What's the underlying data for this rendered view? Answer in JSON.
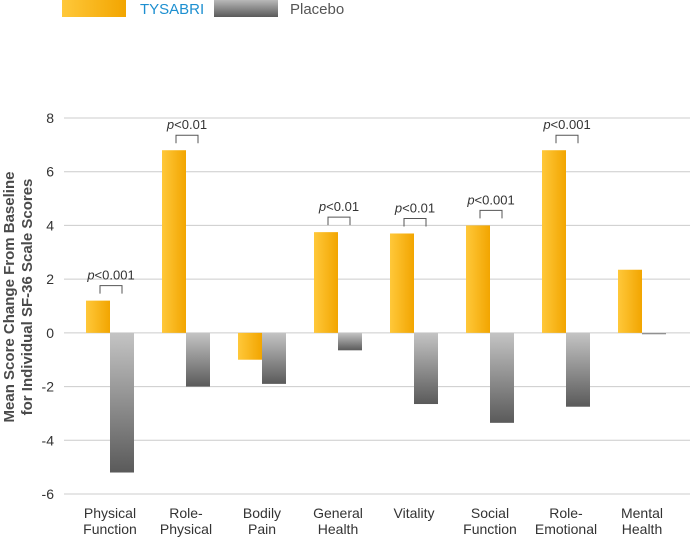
{
  "chart_data": {
    "type": "bar",
    "categories": [
      [
        "Physical",
        "Function"
      ],
      [
        "Role-",
        "Physical"
      ],
      [
        "Bodily",
        "Pain"
      ],
      [
        "General",
        "Health"
      ],
      [
        "Vitality",
        ""
      ],
      [
        "Social",
        "Function"
      ],
      [
        "Role-",
        "Emotional"
      ],
      [
        "Mental",
        "Health"
      ]
    ],
    "series": [
      {
        "name": "TYSABRI",
        "values": [
          1.2,
          6.8,
          -1.0,
          3.75,
          3.7,
          4.0,
          6.8,
          2.35
        ]
      },
      {
        "name": "Placebo",
        "values": [
          -5.2,
          -2.0,
          -1.9,
          -0.65,
          -2.65,
          -3.35,
          -2.75,
          -0.05
        ]
      }
    ],
    "ylabel": [
      "Mean Score Change From Baseline",
      "for Individual SF-36 Scale Scores"
    ],
    "ylim": [
      -6,
      8
    ],
    "yticks": [
      8,
      6,
      4,
      2,
      0,
      -2,
      -4,
      -6
    ],
    "ytick_labels": [
      "8",
      "6",
      "4",
      "2",
      "0",
      "-2",
      "-4",
      "-6"
    ],
    "grid": true,
    "legend_position": "top-left",
    "annotations": [
      {
        "category": 0,
        "p": "p",
        "rest": "<0.001"
      },
      {
        "category": 1,
        "p": "p",
        "rest": "<0.01"
      },
      {
        "category": 3,
        "p": "p",
        "rest": "<0.01"
      },
      {
        "category": 4,
        "p": "p",
        "rest": "<0.01"
      },
      {
        "category": 5,
        "p": "p",
        "rest": "<0.001"
      },
      {
        "category": 6,
        "p": "p",
        "rest": "<0.001"
      }
    ],
    "colors": {
      "tysabri_light": "#ffc83a",
      "tysabri_dark": "#f2a500",
      "placebo_light": "#c4c4c4",
      "placebo_dark": "#5a5a5a",
      "tysabri_legend_text": "#1d8fd0",
      "placebo_legend_text": "#555555",
      "grid": "#cccccc",
      "axis": "#aaaaaa"
    }
  }
}
